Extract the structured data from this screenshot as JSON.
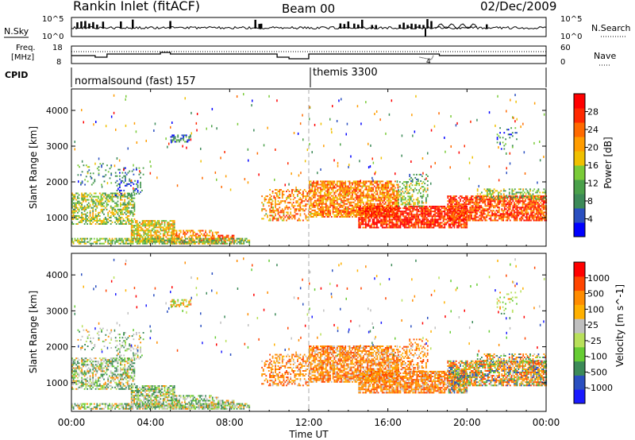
{
  "header": {
    "station": "Rankin Inlet (fitACF)",
    "beam": "Beam 00",
    "date": "02/Dec/2009"
  },
  "noise_panel": {
    "left_label": "N.Sky",
    "right_label": "N.Search",
    "tick_top": "10^5",
    "tick_bottom": "10^0"
  },
  "freq_panel": {
    "left_label_line1": "Freq.",
    "left_label_line2": "[MHz]",
    "left_tick_top": "18",
    "left_tick_bottom": "8",
    "right_label": "Nave",
    "right_tick_top": "60",
    "right_tick_bottom": "0",
    "nave_annotation": "4"
  },
  "cpid_panel": {
    "label": "CPID",
    "program_1": "normalsound (fast) 157",
    "program_2": "themis 3300"
  },
  "colors": {
    "power": [
      "#0000ff",
      "#2a4fc0",
      "#3c8a58",
      "#4aa04a",
      "#7acb38",
      "#f0c000",
      "#ff9c00",
      "#ff6a00",
      "#ff2800",
      "#ff0000"
    ],
    "velocity": [
      "#ff0000",
      "#ff4500",
      "#ff8c00",
      "#ffb000",
      "#c0c0c0",
      "#b8e05a",
      "#66cc33",
      "#3c8a58",
      "#2a4fc0",
      "#1a1aff"
    ]
  },
  "chart_data": [
    {
      "type": "heatmap",
      "name": "power",
      "ylabel": "Slant Range [km]",
      "ylim": [
        200,
        4600
      ],
      "yticks": [
        1000,
        2000,
        3000,
        4000
      ],
      "colorbar_label": "Power [dB]",
      "colorbar_ticks": [
        "4",
        "8",
        "12",
        "16",
        "20",
        "24",
        "28"
      ],
      "colorbar_range": [
        0,
        30
      ]
    },
    {
      "type": "heatmap",
      "name": "velocity",
      "ylabel": "Slant Range [km]",
      "ylim": [
        200,
        4600
      ],
      "yticks": [
        1000,
        2000,
        3000,
        4000
      ],
      "colorbar_label": "Velocity [m s^-1]",
      "colorbar_ticks": [
        "1000",
        "500",
        "100",
        "25",
        "-25",
        "-100",
        "-500",
        "-1000"
      ]
    }
  ],
  "time_axis": {
    "xlabel": "Time UT",
    "ticks": [
      "00:00",
      "04:00",
      "08:00",
      "12:00",
      "16:00",
      "20:00",
      "00:00"
    ],
    "range_hours": [
      0,
      24
    ],
    "marker_hour": 12
  }
}
